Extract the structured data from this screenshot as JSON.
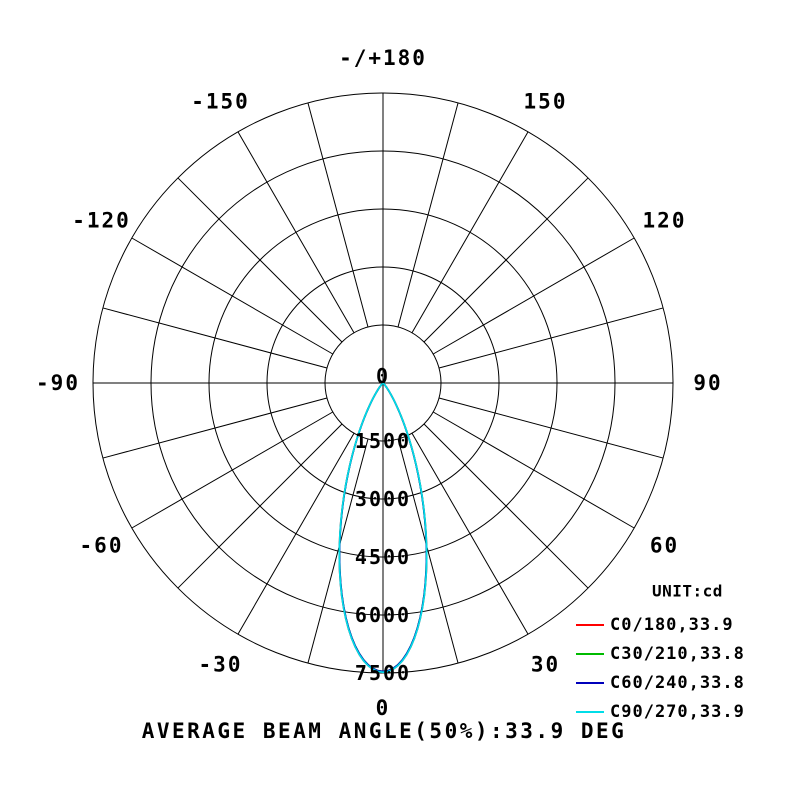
{
  "chart_data": {
    "type": "line",
    "projection": "polar",
    "orientation": "0-deg-at-bottom",
    "unit_label": "UNIT:cd",
    "caption": "AVERAGE BEAM ANGLE(50%):33.9 DEG",
    "average_beam_angle_50pct_deg": 33.9,
    "rmax": 7500,
    "radial_ticks": [
      0,
      1500,
      3000,
      4500,
      6000,
      7500
    ],
    "angle_step_deg": 15,
    "angle_labels": [
      {
        "angle": 180,
        "label": "-/+180"
      },
      {
        "angle": 150,
        "label": "150"
      },
      {
        "angle": 120,
        "label": "120"
      },
      {
        "angle": 90,
        "label": "90"
      },
      {
        "angle": 60,
        "label": "60"
      },
      {
        "angle": 30,
        "label": "30"
      },
      {
        "angle": 0,
        "label": "0"
      },
      {
        "angle": -30,
        "label": "-30"
      },
      {
        "angle": -60,
        "label": "-60"
      },
      {
        "angle": -90,
        "label": "-90"
      },
      {
        "angle": -120,
        "label": "-120"
      },
      {
        "angle": -150,
        "label": "-150"
      }
    ],
    "grid_color": "#000000",
    "legend_position": "bottom-right",
    "series": [
      {
        "name": "C0/180,33.9",
        "beam_angle_50_deg": 33.9,
        "peak_cd": 7480,
        "color": "#ff0000"
      },
      {
        "name": "C30/210,33.8",
        "beam_angle_50_deg": 33.8,
        "peak_cd": 7460,
        "color": "#00bb00"
      },
      {
        "name": "C60/240,33.8",
        "beam_angle_50_deg": 33.8,
        "peak_cd": 7460,
        "color": "#0000bb"
      },
      {
        "name": "C90/270,33.9",
        "beam_angle_50_deg": 33.9,
        "peak_cd": 7480,
        "color": "#00dde8"
      }
    ]
  }
}
